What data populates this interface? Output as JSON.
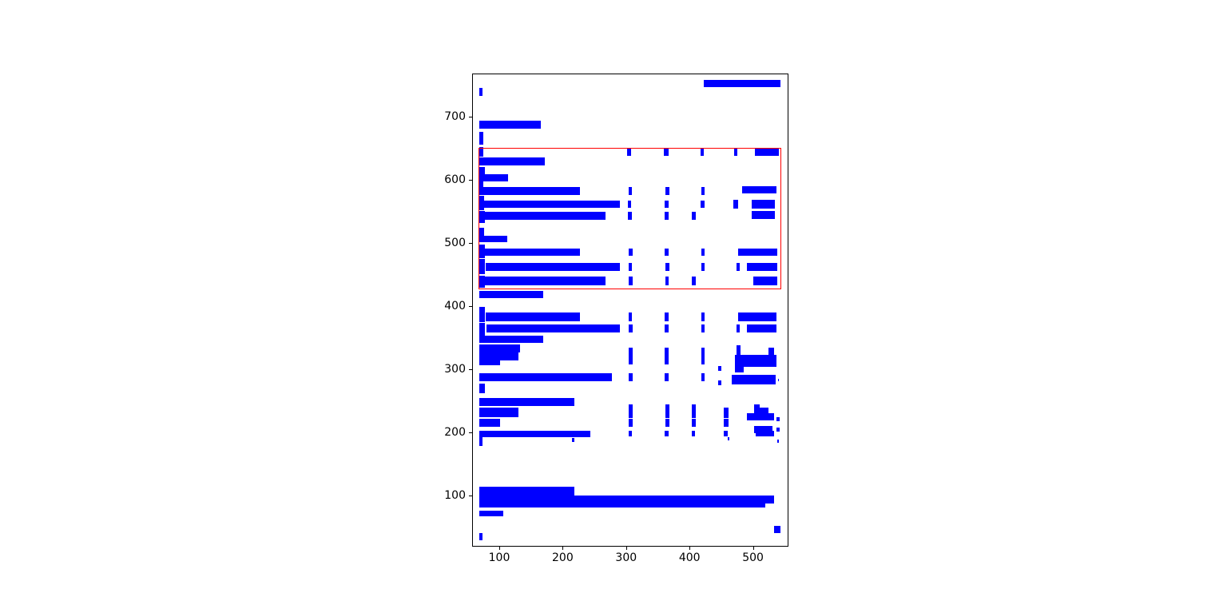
{
  "figure": {
    "background_color": "#ffffff",
    "spine_color": "#000000",
    "tick_label_color": "#000000"
  },
  "chart_data": {
    "type": "bar",
    "subtype": "rectangle-patches (document word/line bounding boxes, broken-bar style)",
    "title": "",
    "xlabel": "",
    "ylabel": "",
    "grid": false,
    "legend": null,
    "xlim": [
      58.5,
      554.7
    ],
    "ylim": [
      19.6,
      767.0
    ],
    "x_ticks": [
      "100",
      "200",
      "300",
      "400",
      "500"
    ],
    "x_tick_values": [
      100,
      200,
      300,
      400,
      500
    ],
    "y_ticks": [
      "100",
      "200",
      "300",
      "400",
      "500",
      "600",
      "700"
    ],
    "y_tick_values": [
      100,
      200,
      300,
      400,
      500,
      600,
      700
    ],
    "patch_color": "#0000ff",
    "highlight_color": "#ff0000",
    "highlight_rect": [
      67.5,
      426,
      545,
      651
    ],
    "rects": [
      [
        422,
        747,
        544,
        758
      ],
      [
        69,
        733,
        74,
        745
      ],
      [
        69,
        681,
        166,
        694
      ],
      [
        69,
        656,
        75,
        676
      ],
      [
        69,
        636,
        75,
        652
      ],
      [
        302,
        638,
        308,
        651
      ],
      [
        360,
        638,
        367,
        651
      ],
      [
        417,
        638,
        423,
        651
      ],
      [
        470,
        638,
        476,
        650
      ],
      [
        503,
        638,
        541,
        650
      ],
      [
        69,
        622,
        172,
        635
      ],
      [
        69,
        606,
        78,
        620
      ],
      [
        69,
        597,
        114,
        609
      ],
      [
        69,
        576,
        75,
        597
      ],
      [
        74,
        576,
        227,
        588
      ],
      [
        304,
        576,
        309,
        588
      ],
      [
        362,
        576,
        368,
        588
      ],
      [
        418,
        576,
        424,
        588
      ],
      [
        483,
        578,
        537,
        590
      ],
      [
        69,
        552,
        76,
        574
      ],
      [
        74,
        555,
        290,
        567
      ],
      [
        303,
        555,
        308,
        567
      ],
      [
        361,
        555,
        367,
        567
      ],
      [
        417,
        555,
        424,
        567
      ],
      [
        469,
        554,
        477,
        568
      ],
      [
        498,
        554,
        535,
        568
      ],
      [
        69,
        531,
        77,
        550
      ],
      [
        75,
        536,
        268,
        549
      ],
      [
        303,
        536,
        309,
        549
      ],
      [
        361,
        536,
        367,
        549
      ],
      [
        404,
        536,
        410,
        549
      ],
      [
        498,
        538,
        535,
        550
      ],
      [
        69,
        501,
        76,
        524
      ],
      [
        72,
        501,
        113,
        511
      ],
      [
        69,
        475,
        78,
        497
      ],
      [
        76,
        479,
        227,
        491
      ],
      [
        304,
        479,
        310,
        491
      ],
      [
        361,
        479,
        367,
        491
      ],
      [
        418,
        479,
        424,
        491
      ],
      [
        477,
        479,
        538,
        491
      ],
      [
        69,
        450,
        78,
        474
      ],
      [
        78,
        455,
        290,
        468
      ],
      [
        304,
        455,
        309,
        468
      ],
      [
        362,
        455,
        368,
        468
      ],
      [
        418,
        455,
        424,
        468
      ],
      [
        474,
        455,
        479,
        468
      ],
      [
        491,
        455,
        538,
        468
      ],
      [
        69,
        429,
        77,
        448
      ],
      [
        77,
        433,
        268,
        446
      ],
      [
        304,
        433,
        310,
        446
      ],
      [
        362,
        433,
        367,
        446
      ],
      [
        404,
        433,
        410,
        446
      ],
      [
        500,
        433,
        538,
        446
      ],
      [
        69,
        412,
        170,
        424
      ],
      [
        69,
        374,
        78,
        398
      ],
      [
        78,
        376,
        227,
        389
      ],
      [
        304,
        376,
        309,
        389
      ],
      [
        361,
        376,
        367,
        389
      ],
      [
        418,
        376,
        424,
        389
      ],
      [
        477,
        376,
        537,
        389
      ],
      [
        69,
        352,
        78,
        373
      ],
      [
        80,
        358,
        290,
        370
      ],
      [
        304,
        358,
        310,
        370
      ],
      [
        361,
        358,
        367,
        370
      ],
      [
        418,
        358,
        424,
        370
      ],
      [
        474,
        358,
        479,
        370
      ],
      [
        491,
        358,
        537,
        370
      ],
      [
        69,
        341,
        170,
        353
      ],
      [
        69,
        326,
        133,
        339
      ],
      [
        304,
        322,
        310,
        334
      ],
      [
        361,
        322,
        367,
        334
      ],
      [
        418,
        322,
        424,
        334
      ],
      [
        474,
        321,
        481,
        338
      ],
      [
        525,
        322,
        533,
        334
      ],
      [
        304,
        307,
        310,
        323
      ],
      [
        361,
        307,
        367,
        323
      ],
      [
        418,
        307,
        424,
        323
      ],
      [
        471,
        303,
        537,
        322
      ],
      [
        471,
        295,
        485,
        303
      ],
      [
        445,
        297,
        450,
        305
      ],
      [
        69,
        314,
        131,
        326
      ],
      [
        69,
        306,
        101,
        318
      ],
      [
        466,
        276,
        536,
        291
      ],
      [
        445,
        274,
        450,
        282
      ],
      [
        539,
        280,
        541,
        284
      ],
      [
        69,
        280,
        278,
        293
      ],
      [
        304,
        280,
        310,
        293
      ],
      [
        361,
        280,
        367,
        293
      ],
      [
        418,
        280,
        424,
        293
      ],
      [
        69,
        262,
        77,
        277
      ],
      [
        69,
        241,
        219,
        254
      ],
      [
        69,
        224,
        131,
        239
      ],
      [
        304,
        222,
        310,
        244
      ],
      [
        362,
        222,
        368,
        244
      ],
      [
        403,
        222,
        410,
        244
      ],
      [
        454,
        222,
        461,
        239
      ],
      [
        502,
        230,
        511,
        244
      ],
      [
        511,
        230,
        525,
        239
      ],
      [
        491,
        218,
        534,
        230
      ],
      [
        537,
        217,
        542,
        223
      ],
      [
        69,
        208,
        101,
        221
      ],
      [
        304,
        209,
        310,
        221
      ],
      [
        362,
        209,
        368,
        221
      ],
      [
        403,
        209,
        410,
        221
      ],
      [
        454,
        208,
        461,
        221
      ],
      [
        502,
        198,
        531,
        210
      ],
      [
        537,
        201,
        542,
        207
      ],
      [
        69,
        192,
        244,
        202
      ],
      [
        304,
        193,
        309,
        202
      ],
      [
        361,
        193,
        367,
        202
      ],
      [
        403,
        193,
        408,
        202
      ],
      [
        454,
        193,
        460,
        202
      ],
      [
        504,
        193,
        533,
        202
      ],
      [
        214,
        184,
        218,
        191
      ],
      [
        460,
        187,
        463,
        192
      ],
      [
        538,
        183,
        541,
        188
      ],
      [
        69,
        178,
        74,
        199
      ],
      [
        69,
        99,
        219,
        113
      ],
      [
        69,
        87,
        534,
        100
      ],
      [
        69,
        80,
        519,
        88
      ],
      [
        69,
        66,
        106,
        76
      ],
      [
        533,
        40,
        544,
        51
      ],
      [
        69,
        28,
        74,
        40
      ]
    ]
  }
}
